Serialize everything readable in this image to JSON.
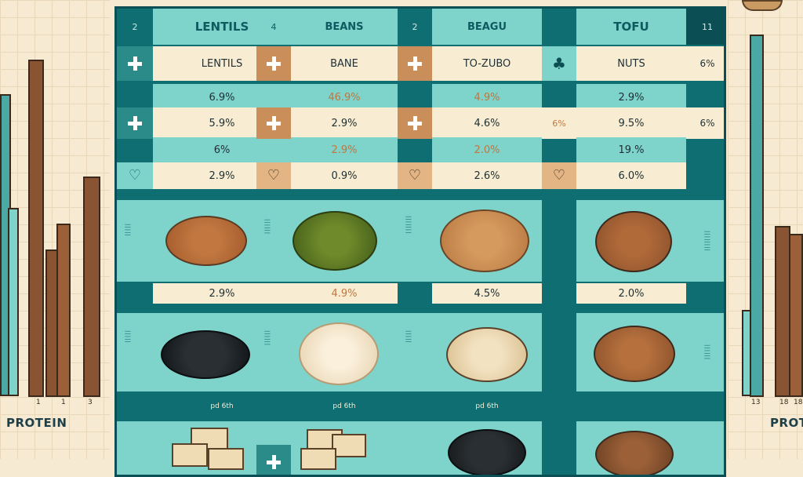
{
  "left_chart": {
    "label": "PROTEIN",
    "ticks": [
      "1",
      "1",
      "3"
    ]
  },
  "right_chart": {
    "label": "PROT",
    "ticks": [
      "13",
      "18",
      "18"
    ]
  },
  "table": {
    "columns": [
      {
        "num": "2",
        "header": "LENTILS",
        "row1": "LENTILS",
        "row2": "6.9%",
        "row3": "5.9%",
        "row4": "6%",
        "row5": "2.9%",
        "mid": "2.9%",
        "low": "pd 6th"
      },
      {
        "num": "4",
        "header": "BEANS",
        "row1": "BANE",
        "row2": "46.9%",
        "row3": "2.9%",
        "row4": "2.9%",
        "row5": "0.9%",
        "mid": "4.9%",
        "low": "pd 6th"
      },
      {
        "num": "2",
        "header": "BEAGU",
        "row1": "TO-ZUBO",
        "row2": "4.9%",
        "row3": "4.6%",
        "row4": "2.0%",
        "row5": "2.6%",
        "mid": "4.5%",
        "low": "pd 6th"
      },
      {
        "num": "11",
        "header": "TOFU",
        "row1": "NUTS",
        "row2": "2.9%",
        "row3": "9.5%",
        "row4": "19.%",
        "row5": "6.0%",
        "mid": "2.0%",
        "low": ""
      }
    ],
    "edge": {
      "row1": "6%",
      "row3": "6%"
    },
    "side_marks": [
      "6%"
    ]
  },
  "colors": {
    "teal_dark": "#0f6e72",
    "teal_light": "#7ed3cb",
    "cream": "#f8edd3",
    "tan": "#c98e5a",
    "brown": "#8a5432"
  }
}
